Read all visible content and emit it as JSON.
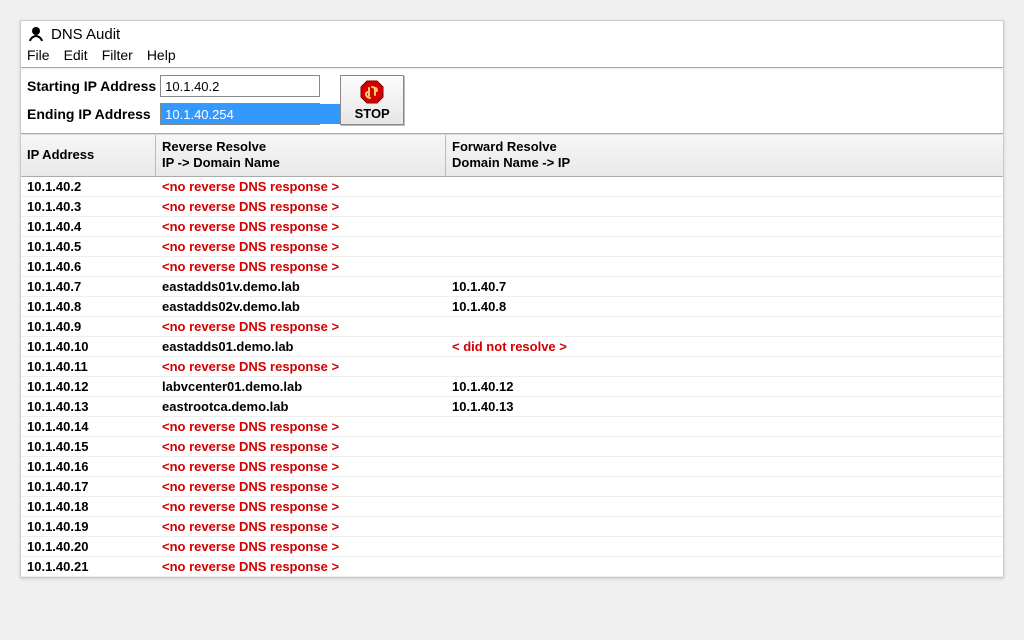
{
  "window": {
    "title": "DNS Audit"
  },
  "menu": {
    "file": "File",
    "edit": "Edit",
    "filter": "Filter",
    "help": "Help"
  },
  "toolbar": {
    "start_label": "Starting IP Address",
    "end_label": "Ending IP Address",
    "start_value": "10.1.40.2",
    "end_value": "10.1.40.254",
    "stop_label": "STOP"
  },
  "columns": {
    "ip": "IP Address",
    "rev_title": "Reverse Resolve",
    "rev_sub": "IP -> Domain Name",
    "fwd_title": "Forward Resolve",
    "fwd_sub": "Domain Name -> IP"
  },
  "messages": {
    "no_reverse": "<no reverse DNS response >",
    "did_not_resolve": "< did not resolve >"
  },
  "colors": {
    "error_text": "#d40000",
    "selection_bg": "#3399ff",
    "header_border": "#aaaaaa"
  },
  "rows": [
    {
      "ip": "10.1.40.2",
      "rev": "<no reverse DNS response >",
      "rev_err": true,
      "fwd": "",
      "fwd_err": false
    },
    {
      "ip": "10.1.40.3",
      "rev": "<no reverse DNS response >",
      "rev_err": true,
      "fwd": "",
      "fwd_err": false
    },
    {
      "ip": "10.1.40.4",
      "rev": "<no reverse DNS response >",
      "rev_err": true,
      "fwd": "",
      "fwd_err": false
    },
    {
      "ip": "10.1.40.5",
      "rev": "<no reverse DNS response >",
      "rev_err": true,
      "fwd": "",
      "fwd_err": false
    },
    {
      "ip": "10.1.40.6",
      "rev": "<no reverse DNS response >",
      "rev_err": true,
      "fwd": "",
      "fwd_err": false
    },
    {
      "ip": "10.1.40.7",
      "rev": "eastadds01v.demo.lab",
      "rev_err": false,
      "fwd": "10.1.40.7",
      "fwd_err": false
    },
    {
      "ip": "10.1.40.8",
      "rev": "eastadds02v.demo.lab",
      "rev_err": false,
      "fwd": "10.1.40.8",
      "fwd_err": false
    },
    {
      "ip": "10.1.40.9",
      "rev": "<no reverse DNS response >",
      "rev_err": true,
      "fwd": "",
      "fwd_err": false
    },
    {
      "ip": "10.1.40.10",
      "rev": "eastadds01.demo.lab",
      "rev_err": false,
      "fwd": "< did not resolve >",
      "fwd_err": true
    },
    {
      "ip": "10.1.40.11",
      "rev": "<no reverse DNS response >",
      "rev_err": true,
      "fwd": "",
      "fwd_err": false
    },
    {
      "ip": "10.1.40.12",
      "rev": "labvcenter01.demo.lab",
      "rev_err": false,
      "fwd": "10.1.40.12",
      "fwd_err": false
    },
    {
      "ip": "10.1.40.13",
      "rev": "eastrootca.demo.lab",
      "rev_err": false,
      "fwd": "10.1.40.13",
      "fwd_err": false
    },
    {
      "ip": "10.1.40.14",
      "rev": "<no reverse DNS response >",
      "rev_err": true,
      "fwd": "",
      "fwd_err": false
    },
    {
      "ip": "10.1.40.15",
      "rev": "<no reverse DNS response >",
      "rev_err": true,
      "fwd": "",
      "fwd_err": false
    },
    {
      "ip": "10.1.40.16",
      "rev": "<no reverse DNS response >",
      "rev_err": true,
      "fwd": "",
      "fwd_err": false
    },
    {
      "ip": "10.1.40.17",
      "rev": "<no reverse DNS response >",
      "rev_err": true,
      "fwd": "",
      "fwd_err": false
    },
    {
      "ip": "10.1.40.18",
      "rev": "<no reverse DNS response >",
      "rev_err": true,
      "fwd": "",
      "fwd_err": false
    },
    {
      "ip": "10.1.40.19",
      "rev": "<no reverse DNS response >",
      "rev_err": true,
      "fwd": "",
      "fwd_err": false
    },
    {
      "ip": "10.1.40.20",
      "rev": "<no reverse DNS response >",
      "rev_err": true,
      "fwd": "",
      "fwd_err": false
    },
    {
      "ip": "10.1.40.21",
      "rev": "<no reverse DNS response >",
      "rev_err": true,
      "fwd": "",
      "fwd_err": false
    }
  ]
}
